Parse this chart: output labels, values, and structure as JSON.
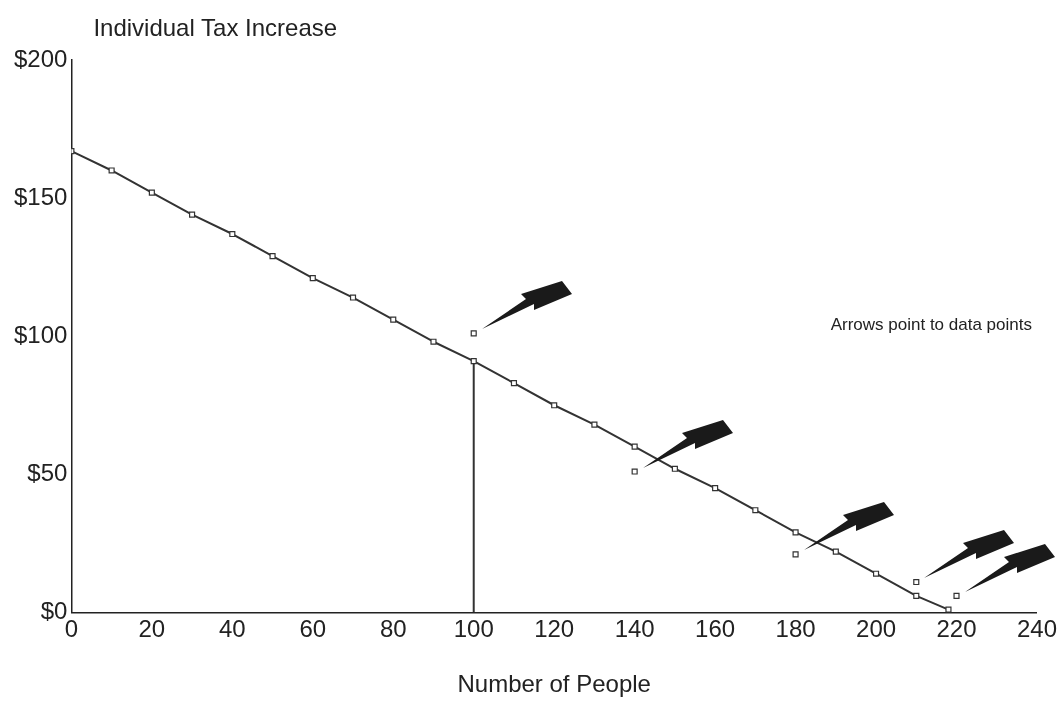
{
  "chart_data": {
    "type": "line",
    "title": "Individual Tax Increase",
    "xlabel": "Number of People",
    "xlim": [
      0,
      240
    ],
    "xticks": [
      0,
      20,
      40,
      60,
      80,
      100,
      120,
      140,
      160,
      180,
      200,
      220,
      240
    ],
    "ylim": [
      0,
      200
    ],
    "yticks": [
      {
        "value": 0,
        "label": "$0"
      },
      {
        "value": 50,
        "label": "$50"
      },
      {
        "value": 100,
        "label": "$100"
      },
      {
        "value": 150,
        "label": "$150"
      },
      {
        "value": 200,
        "label": "$200"
      }
    ],
    "grid": false,
    "legend": false,
    "marker": "square",
    "line_style": "solid",
    "annotations": [
      "Arrows point to data points"
    ],
    "series": [
      {
        "color": "#333333",
        "x": [
          0,
          10,
          20,
          30,
          40,
          50,
          60,
          70,
          80,
          90,
          100,
          110,
          120,
          130,
          140,
          150,
          160,
          170,
          180,
          190,
          200,
          210,
          218
        ],
        "values": [
          167,
          160,
          152,
          144,
          137,
          129,
          121,
          114,
          106,
          98,
          91,
          83,
          75,
          68,
          60,
          52,
          45,
          37,
          29,
          22,
          14,
          6,
          1
        ]
      },
      {
        "color": "#333333",
        "marker": "none",
        "x": [
          100,
          100
        ],
        "values": [
          0,
          91
        ]
      },
      {
        "type": "scatter",
        "color": "#333333",
        "x": [
          100,
          140,
          180,
          210,
          220
        ],
        "values": [
          101,
          51,
          21,
          11,
          6
        ]
      }
    ]
  }
}
